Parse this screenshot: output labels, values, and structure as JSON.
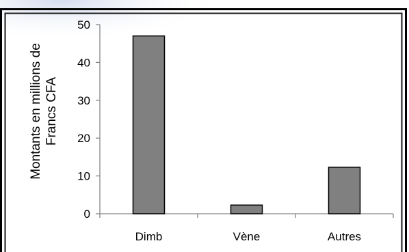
{
  "chart_data": {
    "type": "bar",
    "categories": [
      "Dimb",
      "Vène",
      "Autres"
    ],
    "values": [
      47,
      2.3,
      12.3
    ],
    "title": "",
    "xlabel": "",
    "ylabel_lines": [
      "Montants en millions de",
      "Francs CFA"
    ],
    "ylim": [
      0,
      50
    ],
    "yticks": [
      0,
      10,
      20,
      30,
      40,
      50
    ],
    "ytick_labels": [
      "0",
      "10",
      "20",
      "30",
      "40",
      "50"
    ],
    "grid": false,
    "legend": "none",
    "colors": {
      "bar_fill": "#808080",
      "bar_stroke": "#000000",
      "axis": "#868686",
      "frame_outer": "#000000",
      "frame_inner": "#1a1a1a",
      "background": "#ffffff",
      "corner_glow": "#dde4f2"
    }
  }
}
